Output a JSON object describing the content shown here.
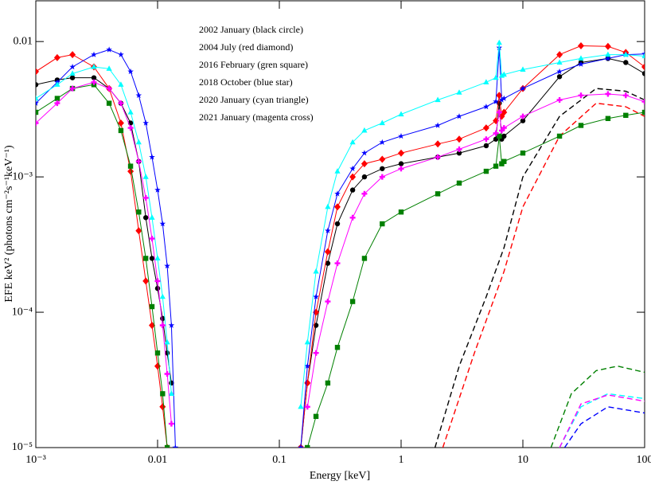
{
  "chart_data": {
    "type": "line",
    "log_x": true,
    "log_y": true,
    "x_label": "Energy [keV]",
    "y_label": "EFE keV² (photons cm⁻²s⁻¹keV⁻¹)",
    "xlim": [
      0.001,
      100
    ],
    "ylim": [
      1e-05,
      0.02
    ],
    "xticks": [
      {
        "value": 0.001,
        "label": "10⁻³"
      },
      0.01,
      0.1,
      1,
      10,
      100
    ],
    "yticks": [
      {
        "value": 1e-05,
        "label": "10⁻⁵"
      },
      {
        "value": 0.0001,
        "label": "10⁻⁴"
      },
      {
        "value": 0.001,
        "label": "10⁻³"
      },
      0.01
    ],
    "legend": "top-left",
    "x": [
      0.001,
      0.0015,
      0.002,
      0.003,
      0.004,
      0.005,
      0.006,
      0.007,
      0.008,
      0.009,
      0.01,
      0.011,
      0.012,
      0.013,
      0.014,
      0.05,
      0.15,
      0.17,
      0.2,
      0.25,
      0.3,
      0.4,
      0.5,
      0.7,
      1,
      2,
      3,
      5,
      6,
      6.4,
      6.7,
      7,
      10,
      20,
      30,
      50,
      70,
      100
    ],
    "series": [
      {
        "name": "2002 January (black circle)",
        "color": "#000000",
        "marker": "circle",
        "values": [
          0.0048,
          0.0052,
          0.0054,
          0.0054,
          0.0045,
          0.0035,
          0.0025,
          0.0013,
          0.0005,
          0.00025,
          0.00015,
          9e-05,
          5e-05,
          3e-05,
          null,
          null,
          1e-05,
          3e-05,
          8e-05,
          0.00023,
          0.00045,
          0.0008,
          0.001,
          0.00115,
          0.00125,
          0.0014,
          0.0015,
          0.0017,
          0.0019,
          0.0035,
          0.0019,
          0.002,
          0.0026,
          0.0055,
          0.007,
          0.0075,
          0.007,
          0.0058
        ]
      },
      {
        "name": "2004 July (red diamond)",
        "color": "#ff0000",
        "marker": "diamond",
        "values": [
          0.006,
          0.0076,
          0.008,
          0.0065,
          0.0045,
          0.0025,
          0.0011,
          0.0004,
          0.00017,
          8e-05,
          4e-05,
          2e-05,
          1e-05,
          null,
          null,
          null,
          1e-05,
          3e-05,
          0.0001,
          0.00028,
          0.0006,
          0.001,
          0.00125,
          0.00135,
          0.0015,
          0.00175,
          0.0019,
          0.0023,
          0.0026,
          0.004,
          0.0028,
          0.003,
          0.0045,
          0.008,
          0.0093,
          0.0092,
          0.0083,
          0.0065
        ]
      },
      {
        "name": "2016 February (gren square)",
        "color": "#008000",
        "marker": "square",
        "values": [
          0.003,
          0.0038,
          0.0045,
          0.0048,
          0.0035,
          0.0022,
          0.0012,
          0.00055,
          0.00025,
          0.00011,
          5e-05,
          2.5e-05,
          1e-05,
          null,
          null,
          null,
          null,
          1e-05,
          1.7e-05,
          3e-05,
          5.5e-05,
          0.00012,
          0.00025,
          0.00045,
          0.00055,
          0.00075,
          0.0009,
          0.0011,
          0.0012,
          0.002,
          0.00125,
          0.0013,
          0.0015,
          0.002,
          0.0024,
          0.0027,
          0.00285,
          0.003
        ]
      },
      {
        "name": "2018  October (blue star)",
        "color": "#0000ff",
        "marker": "star",
        "values": [
          0.0035,
          0.005,
          0.0065,
          0.008,
          0.0087,
          0.008,
          0.006,
          0.004,
          0.0025,
          0.0014,
          0.0008,
          0.00045,
          0.00022,
          8e-05,
          1e-05,
          null,
          1e-05,
          4e-05,
          0.00013,
          0.0004,
          0.00075,
          0.00115,
          0.0015,
          0.0018,
          0.002,
          0.0024,
          0.0028,
          0.0033,
          0.0036,
          0.009,
          0.0037,
          0.0038,
          0.0045,
          0.006,
          0.0068,
          0.0075,
          0.008,
          0.0081
        ]
      },
      {
        "name": "2020 January (cyan triangle)",
        "color": "#00ffff",
        "marker": "triangle",
        "values": [
          0.0038,
          0.0048,
          0.0058,
          0.0065,
          0.0063,
          0.0048,
          0.003,
          0.0018,
          0.001,
          0.0005,
          0.00025,
          0.00013,
          6e-05,
          2.5e-05,
          null,
          null,
          2e-05,
          6e-05,
          0.0002,
          0.0006,
          0.0011,
          0.0018,
          0.0022,
          0.0025,
          0.0029,
          0.0037,
          0.0042,
          0.005,
          0.0054,
          0.0098,
          0.0056,
          0.0057,
          0.0062,
          0.007,
          0.0075,
          0.008,
          0.008,
          0.0078
        ]
      },
      {
        "name": "2021 January (magenta cross)",
        "color": "#ff00ff",
        "marker": "cross",
        "values": [
          0.0025,
          0.0035,
          0.0045,
          0.005,
          0.0045,
          0.0035,
          0.0023,
          0.0013,
          0.0007,
          0.00035,
          0.00017,
          8e-05,
          3.5e-05,
          1.5e-05,
          null,
          null,
          null,
          2e-05,
          5e-05,
          0.00012,
          0.00023,
          0.0005,
          0.00075,
          0.001,
          0.00115,
          0.0014,
          0.0016,
          0.0019,
          0.0021,
          0.003,
          0.0022,
          0.0023,
          0.0028,
          0.0037,
          0.004,
          0.0041,
          0.004,
          0.0036
        ]
      }
    ],
    "components": [
      {
        "color": "#000000",
        "x": [
          1.9,
          3,
          5,
          7,
          10,
          20,
          40,
          70,
          100
        ],
        "values": [
          1e-05,
          4e-05,
          0.00013,
          0.0003,
          0.001,
          0.0028,
          0.0045,
          0.0043,
          0.0037
        ]
      },
      {
        "color": "#ff0000",
        "x": [
          2.2,
          4,
          7,
          10,
          20,
          40,
          70,
          100
        ],
        "values": [
          1e-05,
          5e-05,
          0.0002,
          0.0006,
          0.002,
          0.0035,
          0.0033,
          0.0028
        ]
      },
      {
        "color": "#008000",
        "x": [
          17,
          25,
          40,
          60,
          100
        ],
        "values": [
          1e-05,
          2.5e-05,
          3.7e-05,
          4e-05,
          3.6e-05
        ]
      },
      {
        "color": "#00ffff",
        "x": [
          20,
          30,
          50,
          100
        ],
        "values": [
          1e-05,
          2e-05,
          2.5e-05,
          2.3e-05
        ]
      },
      {
        "color": "#ff00ff",
        "x": [
          20,
          30,
          50,
          100
        ],
        "values": [
          1e-05,
          2.1e-05,
          2.45e-05,
          2.2e-05
        ]
      },
      {
        "color": "#0000ff",
        "x": [
          22,
          30,
          50,
          100
        ],
        "values": [
          1e-05,
          1.5e-05,
          2e-05,
          1.8e-05
        ]
      }
    ]
  }
}
